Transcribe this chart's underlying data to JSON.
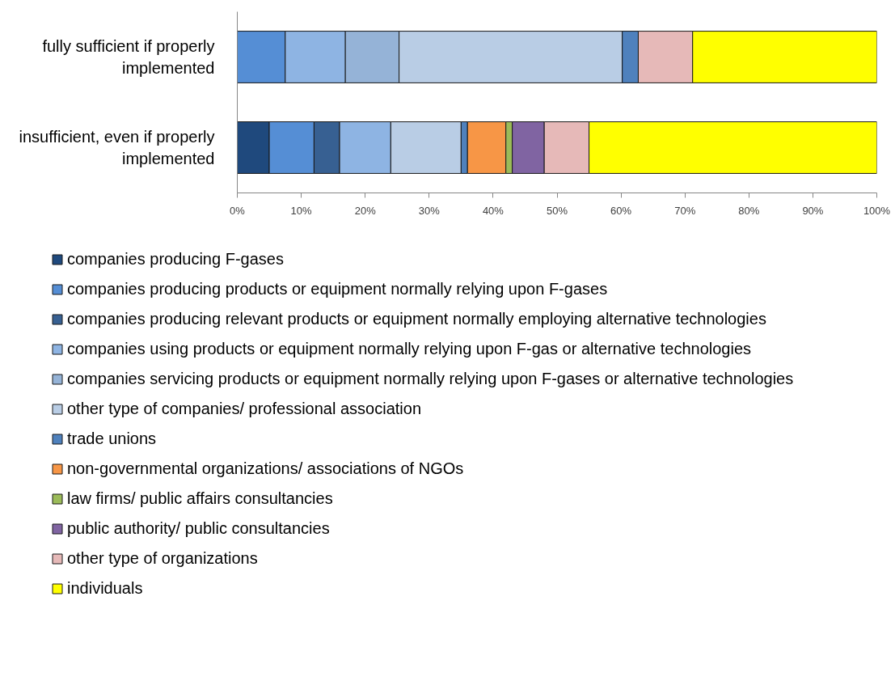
{
  "chart_data": {
    "type": "bar",
    "orientation": "horizontal",
    "stacked": true,
    "legend": "bottom",
    "categories": [
      "fully sufficient if properly implemented",
      "insufficient, even if properly implemented"
    ],
    "xlim": [
      0,
      100
    ],
    "xticks": [
      {
        "value": 0,
        "label": "0%"
      },
      {
        "value": 10,
        "label": "10%"
      },
      {
        "value": 20,
        "label": "20%"
      },
      {
        "value": 30,
        "label": "30%"
      },
      {
        "value": 40,
        "label": "40%"
      },
      {
        "value": 50,
        "label": "50%"
      },
      {
        "value": 60,
        "label": "60%"
      },
      {
        "value": 70,
        "label": "70%"
      },
      {
        "value": 80,
        "label": "80%"
      },
      {
        "value": 90,
        "label": "90%"
      },
      {
        "value": 100,
        "label": "100%"
      }
    ],
    "series": [
      {
        "name": "companies producing F-gases",
        "color": "#1f497d",
        "values": [
          null,
          5
        ]
      },
      {
        "name": "companies producing products or equipment normally relying upon F-gases",
        "color": "#558ed5",
        "values": [
          7.5,
          7
        ]
      },
      {
        "name": "companies producing relevant products or equipment normally employing alternative technologies",
        "color": "#376092",
        "values": [
          null,
          4
        ]
      },
      {
        "name": "companies using products or equipment normally relying upon F-gas or alternative technologies",
        "color": "#8eb4e3",
        "values": [
          9.4,
          8
        ]
      },
      {
        "name": "companies servicing products or equipment normally relying upon F-gases or alternative technologies",
        "color": "#95b3d7",
        "values": [
          8.4,
          null
        ]
      },
      {
        "name": "other type of companies/ professional association",
        "color": "#b9cde5",
        "values": [
          34.9,
          11
        ]
      },
      {
        "name": "trade unions",
        "color": "#4f81bd",
        "values": [
          2.5,
          1
        ]
      },
      {
        "name": "non-governmental organizations/ associations of NGOs",
        "color": "#f79646",
        "values": [
          null,
          6
        ]
      },
      {
        "name": "law firms/ public affairs consultancies",
        "color": "#9bbb59",
        "values": [
          null,
          1
        ]
      },
      {
        "name": "public authority/ public consultancies",
        "color": "#8064a2",
        "values": [
          null,
          5
        ]
      },
      {
        "name": "other type of organizations",
        "color": "#e6b9b8",
        "values": [
          8.5,
          7
        ]
      },
      {
        "name": "individuals",
        "color": "#ffff00",
        "values": [
          28.8,
          45
        ]
      }
    ]
  }
}
